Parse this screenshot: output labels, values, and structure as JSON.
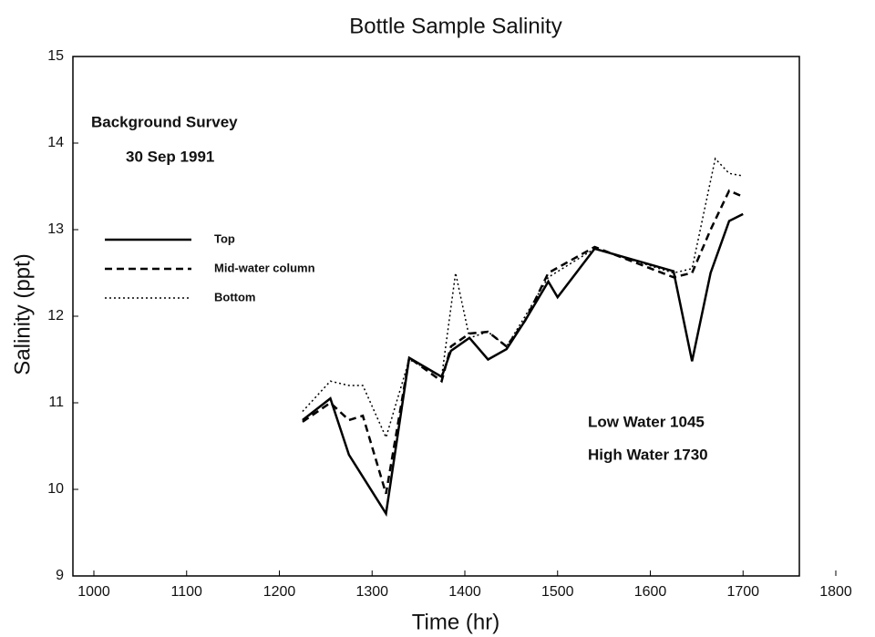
{
  "chart_data": {
    "type": "line",
    "title": "Bottle Sample Salinity",
    "xlabel": "Time (hr)",
    "ylabel": "Salinity (ppt)",
    "annotations": [
      "Background Survey",
      "30 Sep 1991",
      "Low Water 1045",
      "High Water 1730"
    ],
    "xlim": [
      1000,
      1800
    ],
    "xticks": [
      1000,
      1100,
      1200,
      1300,
      1400,
      1500,
      1600,
      1700,
      1800
    ],
    "ylim": [
      9,
      15
    ],
    "yticks": [
      9,
      10,
      11,
      12,
      13,
      14,
      15
    ],
    "series": [
      {
        "name": "Top",
        "color": "#000000",
        "dash": "solid",
        "x": [
          1225,
          1255,
          1275,
          1315,
          1340,
          1375,
          1385,
          1405,
          1425,
          1445,
          1465,
          1490,
          1500,
          1540,
          1625,
          1645,
          1665,
          1685,
          1700
        ],
        "values": [
          10.8,
          11.05,
          10.4,
          9.72,
          11.52,
          11.3,
          11.6,
          11.75,
          11.5,
          11.62,
          11.95,
          12.4,
          12.22,
          12.78,
          12.52,
          11.48,
          12.5,
          13.1,
          13.18
        ]
      },
      {
        "name": "Mid-water column",
        "color": "#000000",
        "dash": "dashed",
        "x": [
          1225,
          1255,
          1275,
          1290,
          1315,
          1340,
          1375,
          1385,
          1405,
          1425,
          1445,
          1465,
          1490,
          1540,
          1625,
          1645,
          1665,
          1685,
          1700
        ],
        "values": [
          10.78,
          11.0,
          10.8,
          10.85,
          9.95,
          11.52,
          11.25,
          11.65,
          11.8,
          11.82,
          11.65,
          11.95,
          12.5,
          12.8,
          12.45,
          12.5,
          13.0,
          13.45,
          13.38
        ]
      },
      {
        "name": "Bottom",
        "color": "#000000",
        "dash": "dotted",
        "x": [
          1225,
          1255,
          1275,
          1290,
          1315,
          1340,
          1375,
          1390,
          1405,
          1425,
          1445,
          1465,
          1490,
          1540,
          1625,
          1645,
          1670,
          1685,
          1700
        ],
        "values": [
          10.9,
          11.25,
          11.2,
          11.2,
          10.6,
          11.5,
          11.3,
          12.5,
          11.75,
          11.82,
          11.65,
          12.0,
          12.45,
          12.78,
          12.5,
          12.55,
          13.82,
          13.65,
          13.62
        ]
      }
    ]
  }
}
